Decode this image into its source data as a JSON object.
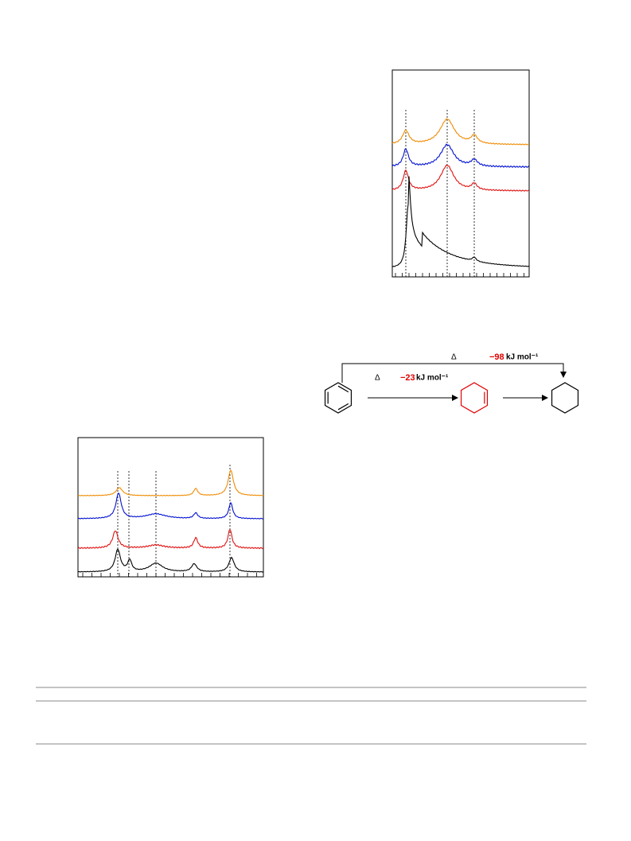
{
  "scheme": {
    "overall": {
      "symbol": "Δ",
      "value": "−98",
      "unit": "kJ mol⁻¹"
    },
    "step": {
      "symbol": "Δ",
      "value": "−23",
      "unit": "kJ mol⁻¹"
    }
  }
}
